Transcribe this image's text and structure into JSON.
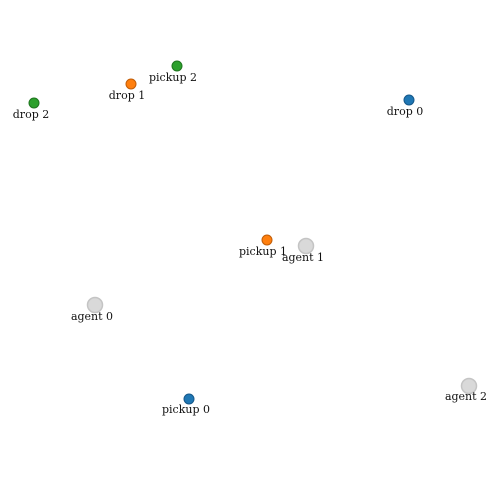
{
  "colors": {
    "task_0": "#1f77b4",
    "task_1": "#ff7f0e",
    "task_2": "#2ca02c",
    "agent": "#d9d9d9",
    "agent_outline": "#c4c4c4"
  },
  "agents": [
    {
      "id": 0,
      "label": "agent 0"
    },
    {
      "id": 1,
      "label": "agent 1"
    },
    {
      "id": 2,
      "label": "agent 2"
    }
  ],
  "tasks": [
    {
      "id": 0,
      "pickup_label": "pickup 0",
      "drop_label": "drop 0"
    },
    {
      "id": 1,
      "pickup_label": "pickup 1",
      "drop_label": "drop 1"
    },
    {
      "id": 2,
      "pickup_label": "pickup 2",
      "drop_label": "drop 2"
    }
  ]
}
